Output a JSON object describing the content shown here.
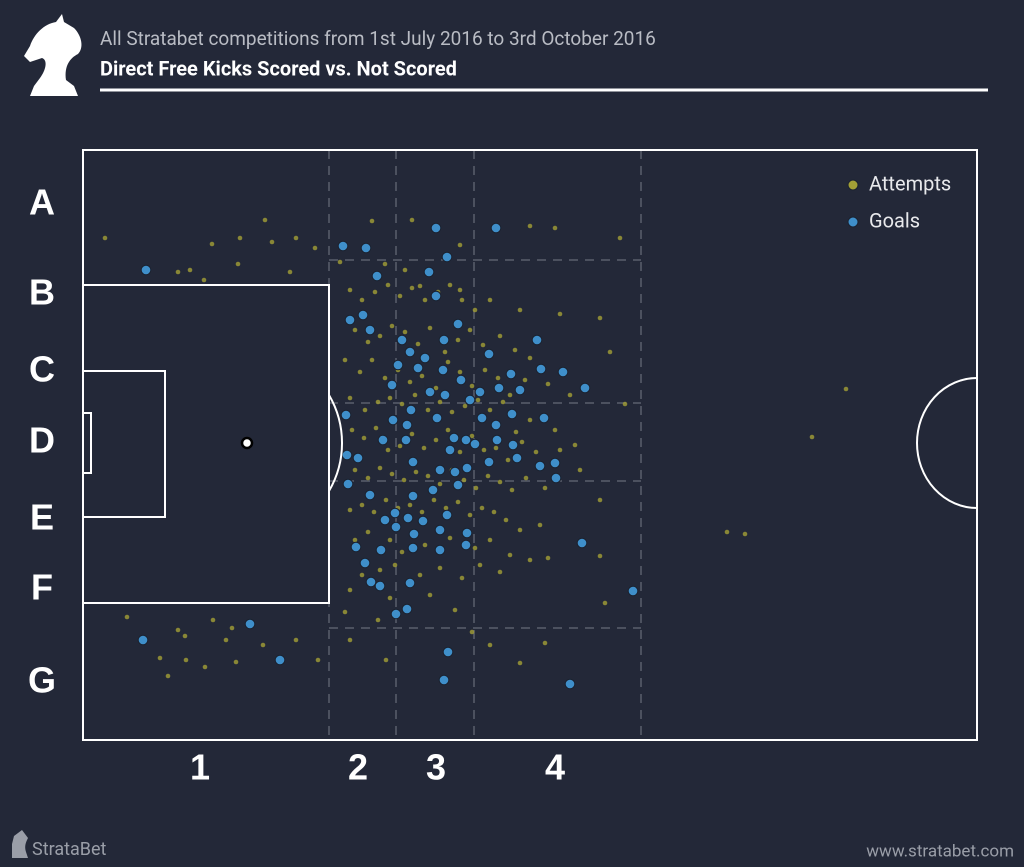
{
  "chart_data": {
    "type": "scatter",
    "subtitle": "All Stratabet competitions from 1st July 2016 to 3rd October 2016",
    "title": "Direct Free Kicks Scored vs. Not Scored",
    "row_labels": [
      "A",
      "B",
      "C",
      "D",
      "E",
      "F",
      "G"
    ],
    "column_labels": [
      "1",
      "2",
      "3",
      "4"
    ],
    "legend": "upper right",
    "xlim": [
      83,
      977
    ],
    "ylim": [
      740,
      150
    ],
    "series": [
      {
        "name": "Attempts",
        "color": "#a29f36",
        "x": [
          105,
          212,
          240,
          265,
          272,
          296,
          315,
          178,
          190,
          204,
          238,
          290,
          127,
          178,
          185,
          213,
          226,
          232,
          160,
          186,
          205,
          263,
          296,
          318,
          168,
          236,
          372,
          412,
          460,
          530,
          555,
          620,
          340,
          385,
          405,
          420,
          460,
          490,
          520,
          560,
          600,
          610,
          625,
          600,
          605,
          545,
          520,
          490,
          472,
          386,
          350,
          600,
          727,
          745,
          812,
          846,
          350,
          362,
          375,
          388,
          400,
          412,
          425,
          438,
          450,
          462,
          475,
          355,
          368,
          380,
          392,
          405,
          418,
          430,
          445,
          458,
          470,
          483,
          500,
          515,
          530,
          345,
          360,
          372,
          385,
          398,
          410,
          422,
          436,
          448,
          460,
          472,
          485,
          498,
          510,
          525,
          548,
          570,
          350,
          365,
          378,
          390,
          402,
          415,
          428,
          440,
          452,
          465,
          478,
          490,
          503,
          516,
          530,
          555,
          575,
          352,
          364,
          376,
          388,
          400,
          412,
          424,
          436,
          448,
          460,
          472,
          484,
          496,
          508,
          522,
          536,
          560,
          580,
          355,
          368,
          380,
          392,
          404,
          416,
          428,
          440,
          452,
          464,
          476,
          488,
          500,
          512,
          526,
          545,
          350,
          362,
          374,
          386,
          398,
          410,
          422,
          434,
          446,
          458,
          470,
          482,
          494,
          506,
          520,
          540,
          355,
          368,
          390,
          402,
          425,
          450,
          475,
          490,
          510,
          530,
          548,
          362,
          380,
          395,
          420,
          440,
          462,
          480,
          500,
          350,
          390,
          430,
          455,
          345,
          378
        ],
        "values": [
          238,
          244,
          238,
          220,
          242,
          238,
          248,
          272,
          270,
          280,
          264,
          272,
          617,
          630,
          636,
          620,
          640,
          628,
          658,
          660,
          667,
          645,
          640,
          660,
          676,
          662,
          221,
          220,
          245,
          226,
          228,
          238,
          262,
          264,
          270,
          286,
          290,
          300,
          310,
          314,
          318,
          352,
          404,
          500,
          603,
          643,
          663,
          645,
          632,
          660,
          640,
          556,
          532,
          534,
          437,
          389,
          290,
          300,
          292,
          285,
          296,
          288,
          300,
          292,
          285,
          300,
          310,
          330,
          342,
          336,
          326,
          332,
          344,
          328,
          352,
          340,
          330,
          345,
          336,
          350,
          358,
          360,
          372,
          360,
          378,
          370,
          382,
          376,
          388,
          362,
          372,
          386,
          370,
          378,
          395,
          380,
          384,
          395,
          398,
          410,
          402,
          398,
          404,
          395,
          410,
          402,
          412,
          406,
          400,
          410,
          402,
          432,
          420,
          430,
          445,
          430,
          438,
          428,
          450,
          446,
          434,
          448,
          440,
          430,
          452,
          436,
          450,
          448,
          460,
          442,
          452,
          450,
          470,
          470,
          478,
          468,
          474,
          480,
          472,
          476,
          484,
          470,
          480,
          488,
          476,
          482,
          490,
          478,
          488,
          510,
          505,
          512,
          500,
          508,
          505,
          512,
          500,
          508,
          502,
          515,
          508,
          512,
          520,
          530,
          525,
          540,
          532,
          540,
          552,
          545,
          538,
          548,
          540,
          555,
          560,
          558,
          575,
          570,
          565,
          575,
          568,
          578,
          565,
          572,
          590,
          598,
          595,
          610,
          612,
          620
        ]
      },
      {
        "name": "Goals",
        "color": "#3f8fca",
        "x": [
          146,
          143,
          250,
          280,
          343,
          366,
          436,
          496,
          447,
          429,
          377,
          436,
          363,
          350,
          370,
          458,
          402,
          444,
          489,
          537,
          410,
          425,
          398,
          418,
          443,
          461,
          511,
          541,
          563,
          392,
          430,
          445,
          470,
          480,
          499,
          520,
          585,
          346,
          411,
          393,
          407,
          437,
          482,
          496,
          512,
          544,
          383,
          406,
          454,
          466,
          497,
          513,
          450,
          475,
          347,
          358,
          413,
          440,
          455,
          467,
          489,
          517,
          540,
          555,
          348,
          556,
          370,
          413,
          433,
          458,
          385,
          395,
          408,
          423,
          447,
          396,
          414,
          440,
          467,
          466,
          356,
          381,
          413,
          440,
          365,
          582,
          371,
          380,
          410,
          633,
          396,
          407,
          448,
          444,
          570
        ],
        "values": [
          270,
          640,
          624,
          660,
          246,
          248,
          228,
          228,
          257,
          272,
          276,
          296,
          315,
          320,
          330,
          324,
          340,
          340,
          354,
          340,
          352,
          358,
          365,
          368,
          370,
          380,
          374,
          369,
          372,
          385,
          392,
          395,
          400,
          392,
          388,
          390,
          388,
          415,
          410,
          420,
          425,
          418,
          418,
          425,
          414,
          418,
          440,
          440,
          438,
          440,
          440,
          445,
          450,
          444,
          455,
          458,
          462,
          470,
          472,
          468,
          462,
          458,
          466,
          463,
          484,
          478,
          495,
          496,
          490,
          485,
          520,
          513,
          518,
          521,
          515,
          527,
          534,
          530,
          533,
          545,
          547,
          550,
          548,
          550,
          563,
          543,
          582,
          586,
          583,
          591,
          614,
          609,
          652,
          680,
          684
        ]
      }
    ]
  },
  "brand": "StrataBet",
  "website": "www.stratabet.com"
}
